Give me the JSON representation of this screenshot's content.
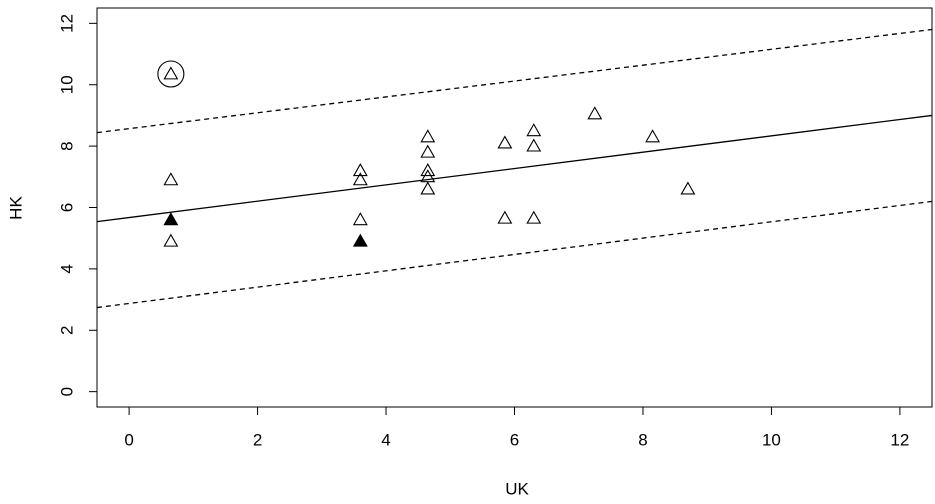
{
  "chart_data": {
    "type": "scatter",
    "xlabel": "UK",
    "ylabel": "HK",
    "xlim": [
      -0.5,
      12.5
    ],
    "ylim": [
      -0.5,
      12.5
    ],
    "xticks": [
      0,
      2,
      4,
      6,
      8,
      10,
      12
    ],
    "yticks": [
      0,
      2,
      4,
      6,
      8,
      10,
      12
    ],
    "series": [
      {
        "marker": "triangle-open",
        "color": "#000000",
        "x": [
          0.65,
          0.65,
          0.65,
          3.6,
          3.6,
          3.6,
          4.65,
          4.65,
          4.65,
          4.65,
          4.65,
          5.85,
          5.85,
          6.3,
          6.3,
          6.3,
          7.25,
          8.15,
          8.7
        ],
        "values": [
          10.35,
          6.9,
          4.9,
          7.2,
          6.9,
          5.6,
          8.3,
          7.8,
          7.2,
          7.0,
          6.6,
          8.1,
          5.65,
          8.5,
          8.0,
          5.65,
          9.05,
          8.3,
          6.6
        ]
      },
      {
        "marker": "triangle-filled",
        "color": "#000000",
        "x": [
          0.65,
          3.6
        ],
        "values": [
          5.6,
          4.9
        ]
      },
      {
        "marker": "circle",
        "color": "#000000",
        "x": [
          0.65
        ],
        "values": [
          10.35
        ]
      }
    ],
    "lines": [
      {
        "dash": false,
        "x": [
          -0.5,
          12.5
        ],
        "values": [
          5.54,
          9.0
        ]
      },
      {
        "dash": true,
        "x": [
          -0.5,
          12.5
        ],
        "values": [
          8.44,
          11.8
        ]
      },
      {
        "dash": true,
        "x": [
          -0.5,
          12.5
        ],
        "values": [
          2.74,
          6.2
        ]
      }
    ]
  }
}
